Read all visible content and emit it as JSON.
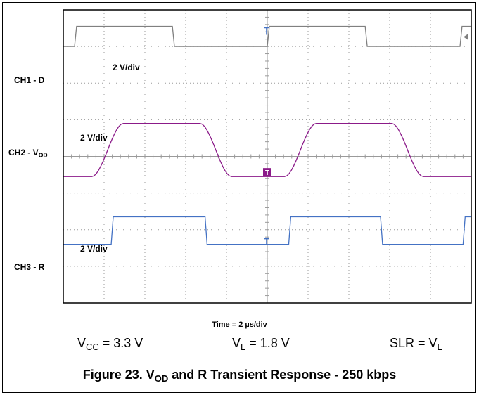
{
  "chart_data": {
    "type": "line",
    "title": "Figure 23. V_OD and R Transient Response - 250 kbps",
    "caption": {
      "prefix": "Figure 23. V",
      "sub": "OD",
      "suffix": " and R Transient Response - 250 kbps"
    },
    "xlabel": "Time = 2 µs/div",
    "x_unit": "µs",
    "xlim": [
      -10,
      10
    ],
    "x_divisions": 10,
    "y_divisions": 8,
    "grid": true,
    "channels": [
      {
        "name": "CH1 - D",
        "label_main": "CH1 - D",
        "label_sub": "",
        "scale": "2 V/div",
        "color": "#808080",
        "low_level_div": 3.0,
        "high_level_div": 3.55,
        "edges": [
          {
            "t": -9.45,
            "to": "high"
          },
          {
            "t": -4.65,
            "to": "low"
          },
          {
            "t": 0.0,
            "to": "high"
          },
          {
            "t": 4.8,
            "to": "low"
          },
          {
            "t": 9.45,
            "to": "high"
          }
        ],
        "initial": "low",
        "rise_us": 0.1
      },
      {
        "name": "CH2 - VOD",
        "label_main": "CH2 - V",
        "label_sub": "OD",
        "scale": "2 V/div",
        "color": "#8b1a89",
        "low_level_div": -0.55,
        "high_level_div": 0.9,
        "edges": [
          {
            "t": -8.6,
            "to": "high"
          },
          {
            "t": -3.3,
            "to": "low"
          },
          {
            "t": 0.85,
            "to": "high"
          },
          {
            "t": 6.1,
            "to": "low"
          }
        ],
        "initial": "low",
        "rise_us": 1.55
      },
      {
        "name": "CH3 - R",
        "label_main": "CH3 - R",
        "label_sub": "",
        "scale": "2 V/div",
        "color": "#4472c4",
        "low_level_div": -2.4,
        "high_level_div": -1.65,
        "edges": [
          {
            "t": -7.65,
            "to": "high"
          },
          {
            "t": -3.05,
            "to": "low"
          },
          {
            "t": 1.05,
            "to": "high"
          },
          {
            "t": 5.55,
            "to": "low"
          },
          {
            "t": 9.6,
            "to": "high"
          }
        ],
        "initial": "low",
        "rise_us": 0.1
      }
    ],
    "conditions": [
      {
        "main": "V",
        "sub": "CC",
        "rest": " = 3.3 V"
      },
      {
        "main": "V",
        "sub": "L",
        "rest": " = 1.8 V"
      },
      {
        "main": "SLR = V",
        "sub": "L",
        "rest": ""
      }
    ]
  }
}
